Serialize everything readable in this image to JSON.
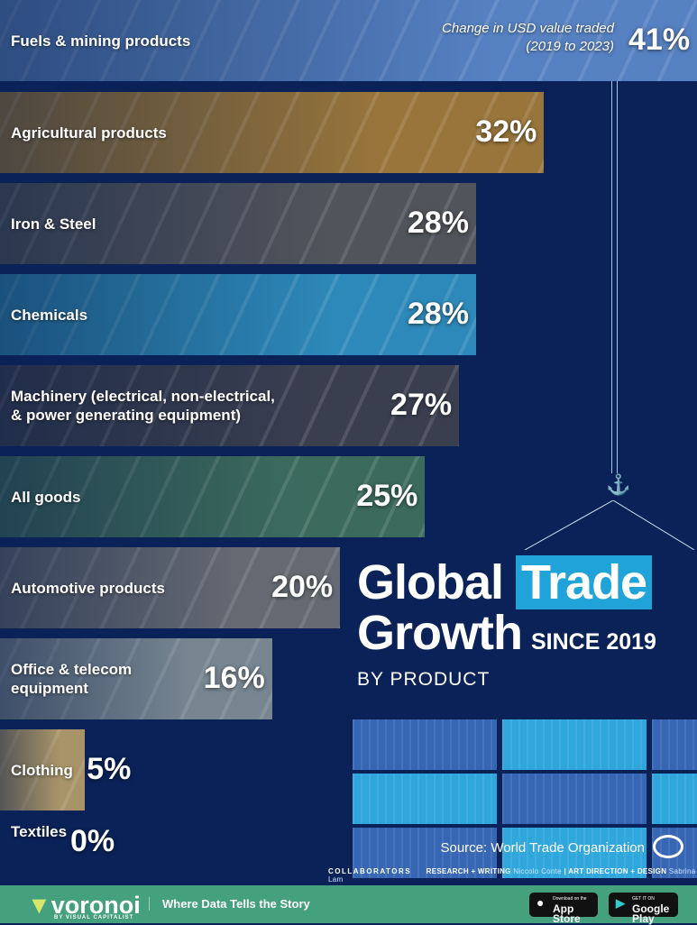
{
  "chart_data": {
    "type": "bar",
    "orientation": "horizontal",
    "title": "Global Trade Growth",
    "subtitle_since": "SINCE 2019",
    "subtitle_by": "BY PRODUCT",
    "value_note": "Change in USD value traded (2019 to 2023)",
    "value_note_lines": [
      "Change in USD value traded",
      "(2019 to 2023)"
    ],
    "unit": "%",
    "xlim": [
      0,
      41
    ],
    "categories": [
      "Fuels & mining products",
      "Agricultural products",
      "Iron & Steel",
      "Chemicals",
      "Machinery (electrical, non-electrical, & power generating equipment)",
      "All goods",
      "Automotive products",
      "Office & telecom equipment",
      "Clothing",
      "Textiles"
    ],
    "category_lines": [
      [
        "Fuels & mining products"
      ],
      [
        "Agricultural products"
      ],
      [
        "Iron & Steel"
      ],
      [
        "Chemicals"
      ],
      [
        "Machinery (electrical, non-electrical,",
        "& power generating equipment)"
      ],
      [
        "All goods"
      ],
      [
        "Automotive products"
      ],
      [
        "Office & telecom",
        "equipment"
      ],
      [
        "Clothing"
      ],
      [
        "Textiles"
      ]
    ],
    "values": [
      41,
      32,
      28,
      28,
      27,
      25,
      20,
      16,
      5,
      0
    ],
    "value_labels": [
      "41%",
      "32%",
      "28%",
      "28%",
      "27%",
      "25%",
      "20%",
      "16%",
      "5%",
      "0%"
    ],
    "bar_colors": [
      "#5a86c8",
      "#a07a3a",
      "#55575c",
      "#2f8fbf",
      "#3d4150",
      "#3f6f5f",
      "#6a6e75",
      "#7d8b95",
      "#b09a6a",
      "#333"
    ]
  },
  "colors": {
    "background": "#0b2258",
    "accent": "#1fa3d9",
    "footer": "#45a07e"
  },
  "source": "Source: World Trade Organization",
  "credits": {
    "label": "COLLABORATORS",
    "research_label": "RESEARCH + WRITING",
    "research_name": "Niccolo Conte",
    "design_label": "ART DIRECTION + DESIGN",
    "design_name": "Sabrina Lam"
  },
  "footer": {
    "brand": "voronoi",
    "brand_sub": "BY VISUAL CAPITALIST",
    "tagline": "Where Data Tells the Story",
    "appstore_small": "Download on the",
    "appstore": "App Store",
    "play_small": "GET IT ON",
    "play": "Google Play"
  }
}
